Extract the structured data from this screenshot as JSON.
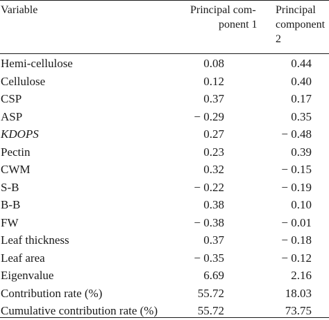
{
  "header": {
    "variable": "Variable",
    "pc1_line1": "Principal com-",
    "pc1_line2": "ponent 1",
    "pc2_line1": "Principal",
    "pc2_line2": "component",
    "pc2_line3": "2"
  },
  "rows": [
    {
      "variable": "Hemi-cellulose",
      "pc1": "0.08",
      "pc2": "0.44"
    },
    {
      "variable": "Cellulose",
      "pc1": "0.12",
      "pc2": "0.40"
    },
    {
      "variable": "CSP",
      "pc1": "0.37",
      "pc2": "0.17"
    },
    {
      "variable": "ASP",
      "pc1": "− 0.29",
      "pc2": "0.35"
    },
    {
      "variable": "KDOPS",
      "pc1": "0.27",
      "pc2": "− 0.48"
    },
    {
      "variable": "Pectin",
      "pc1": "0.23",
      "pc2": "0.39"
    },
    {
      "variable": "CWM",
      "pc1": "0.32",
      "pc2": "− 0.15"
    },
    {
      "variable": "S-B",
      "pc1": "− 0.22",
      "pc2": "− 0.19"
    },
    {
      "variable": "B-B",
      "pc1": "0.38",
      "pc2": "0.10"
    },
    {
      "variable": "FW",
      "pc1": "− 0.38",
      "pc2": "− 0.01"
    },
    {
      "variable": "Leaf thickness",
      "pc1": "0.37",
      "pc2": "− 0.18"
    },
    {
      "variable": "Leaf area",
      "pc1": "− 0.35",
      "pc2": "− 0.12"
    },
    {
      "variable": "Eigenvalue",
      "pc1": "6.69",
      "pc2": "2.16"
    },
    {
      "variable": "Contribution rate (%)",
      "pc1": "55.72",
      "pc2": "18.03"
    },
    {
      "variable": "Cumulative contribution rate (%)",
      "pc1": "55.72",
      "pc2": "73.75"
    }
  ]
}
